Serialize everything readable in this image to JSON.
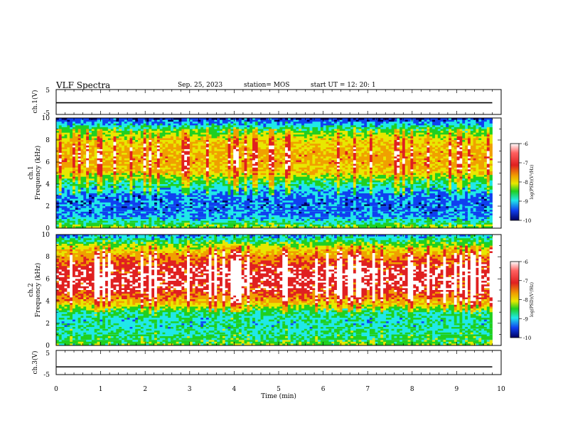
{
  "header": {
    "title": "VLF Spectra",
    "date": "Sep. 25, 2023",
    "station": "station= MOS",
    "start": "start  UT =    12: 20: 1"
  },
  "colors": {
    "colormap": [
      "#ffffff",
      "#e02020",
      "#f0a000",
      "#e8e800",
      "#20d020",
      "#20e8e8",
      "#1040f0",
      "#000060"
    ],
    "trace": "#000000",
    "frame": "#000000"
  },
  "chart_data": [
    {
      "type": "line",
      "panel": "ch1-waveform",
      "ylabel": "ch.1(V)",
      "ylim": [
        -5,
        5
      ],
      "yticks": [
        "5",
        "-5"
      ],
      "x": [
        0,
        9.8
      ],
      "values": [
        -0.3,
        -0.3
      ]
    },
    {
      "type": "heatmap",
      "panel": "ch1-spectrum",
      "ylabel": "ch.1\nFrequency (kHz)",
      "ylim": [
        0,
        10
      ],
      "yticks": [
        "0",
        "2",
        "4",
        "6",
        "8",
        "10"
      ],
      "xlim": [
        0,
        10
      ],
      "data_extent_min": 9.8,
      "freq_profile_kHz": [
        0,
        1,
        2,
        3,
        4,
        5,
        6,
        7,
        8,
        9,
        10
      ],
      "log_psd_profile": [
        -8.0,
        -9.2,
        -9.4,
        -9.3,
        -8.6,
        -7.6,
        -7.2,
        -7.3,
        -7.6,
        -8.4,
        -9.8
      ],
      "colorbar": {
        "label": "log(PSD)(V²/Hz)",
        "ticks": [
          "-6",
          "-7",
          "-8",
          "-9",
          "-10"
        ],
        "range": [
          -10,
          -6
        ]
      }
    },
    {
      "type": "heatmap",
      "panel": "ch2-spectrum",
      "ylabel": "ch.2\nFrequency (kHz)",
      "ylim": [
        0,
        10
      ],
      "yticks": [
        "0",
        "2",
        "4",
        "6",
        "8",
        "10"
      ],
      "xlim": [
        0,
        10
      ],
      "data_extent_min": 9.8,
      "freq_profile_kHz": [
        0,
        1,
        2,
        3,
        4,
        5,
        6,
        7,
        8,
        9,
        10
      ],
      "log_psd_profile": [
        -8.2,
        -8.6,
        -8.8,
        -8.6,
        -7.2,
        -6.5,
        -6.4,
        -6.5,
        -7.0,
        -8.0,
        -9.2
      ],
      "colorbar": {
        "label": "log(PSD)(V²/Hz)",
        "ticks": [
          "-6",
          "-7",
          "-8",
          "-9",
          "-10"
        ],
        "range": [
          -10,
          -6
        ]
      }
    },
    {
      "type": "line",
      "panel": "ch3-waveform",
      "ylabel": "ch.3(V)",
      "ylim": [
        -5,
        5
      ],
      "yticks": [
        "5",
        "-5"
      ],
      "x": [
        0,
        9.8
      ],
      "values": [
        -1.8,
        -1.8
      ]
    }
  ],
  "time_axis": {
    "xlabel": "Time (min)",
    "ticks": [
      "0",
      "1",
      "2",
      "3",
      "4",
      "5",
      "6",
      "7",
      "8",
      "9",
      "10"
    ],
    "xlim": [
      0,
      10
    ]
  }
}
